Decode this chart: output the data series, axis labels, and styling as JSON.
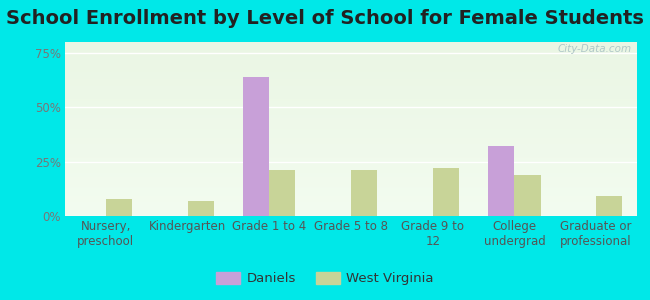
{
  "title": "School Enrollment by Level of School for Female Students",
  "categories": [
    "Nursery,\npreschool",
    "Kindergarten",
    "Grade 1 to 4",
    "Grade 5 to 8",
    "Grade 9 to\n12",
    "College\nundergrad",
    "Graduate or\nprofessional"
  ],
  "daniels": [
    0,
    0,
    64,
    0,
    0,
    32,
    0
  ],
  "west_virginia": [
    8,
    7,
    21,
    21,
    22,
    19,
    9
  ],
  "daniels_color": "#c8a0d8",
  "wv_color": "#c8d498",
  "background_color": "#00e8e8",
  "ylim": [
    0,
    80
  ],
  "yticks": [
    0,
    25,
    50,
    75
  ],
  "ytick_labels": [
    "0%",
    "25%",
    "50%",
    "75%"
  ],
  "title_fontsize": 14,
  "tick_fontsize": 8.5,
  "legend_labels": [
    "Daniels",
    "West Virginia"
  ],
  "watermark": "City-Data.com",
  "bar_width": 0.32
}
